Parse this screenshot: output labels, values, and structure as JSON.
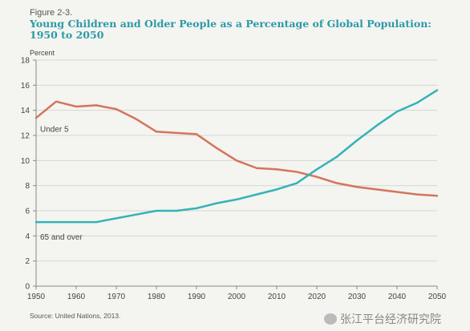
{
  "figure_label": "Figure 2-3.",
  "title": "Young Children and Older People as a Percentage of Global Population: 1950 to 2050",
  "source": "Source: United Nations, 2013.",
  "watermark": "张江平台经济研究院",
  "colors": {
    "under5": "#d4745c",
    "over65": "#33b3b8",
    "axis": "#888888",
    "grid": "#d6d6d6",
    "text": "#444444"
  },
  "chart_data": {
    "type": "line",
    "ylabel": "Percent",
    "ylim": [
      0,
      18
    ],
    "xlim": [
      1950,
      2050
    ],
    "yticks": [
      0,
      2,
      4,
      6,
      8,
      10,
      12,
      14,
      16,
      18
    ],
    "xticks": [
      1950,
      1960,
      1970,
      1980,
      1990,
      2000,
      2010,
      2020,
      2030,
      2040,
      2050
    ],
    "grid": true,
    "series": [
      {
        "name": "Under 5",
        "color": "#d4745c",
        "x": [
          1950,
          1955,
          1960,
          1965,
          1970,
          1975,
          1980,
          1985,
          1990,
          1995,
          2000,
          2005,
          2010,
          2015,
          2020,
          2025,
          2030,
          2035,
          2040,
          2045,
          2050
        ],
        "y": [
          13.4,
          14.7,
          14.3,
          14.4,
          14.1,
          13.3,
          12.3,
          12.2,
          12.1,
          11.0,
          10.0,
          9.4,
          9.3,
          9.1,
          8.7,
          8.2,
          7.9,
          7.7,
          7.5,
          7.3,
          7.2
        ]
      },
      {
        "name": "65 and over",
        "color": "#33b3b8",
        "x": [
          1950,
          1955,
          1960,
          1965,
          1970,
          1975,
          1980,
          1985,
          1990,
          1995,
          2000,
          2005,
          2010,
          2015,
          2020,
          2025,
          2030,
          2035,
          2040,
          2045,
          2050
        ],
        "y": [
          5.1,
          5.1,
          5.1,
          5.1,
          5.4,
          5.7,
          6.0,
          6.0,
          6.2,
          6.6,
          6.9,
          7.3,
          7.7,
          8.2,
          9.3,
          10.3,
          11.6,
          12.8,
          13.9,
          14.6,
          15.6
        ]
      }
    ]
  }
}
